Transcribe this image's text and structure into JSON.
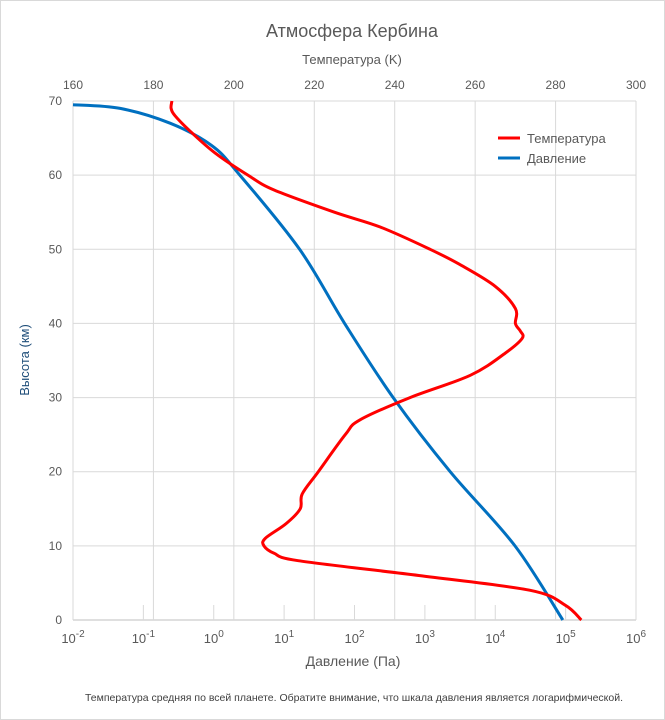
{
  "chart_data": {
    "type": "line",
    "title": "Атмосфера Кербина",
    "top_axis": {
      "label": "Температура (K)",
      "range": [
        160,
        300
      ],
      "ticks": [
        160,
        180,
        200,
        220,
        240,
        260,
        280,
        300
      ]
    },
    "left_axis": {
      "label": "Высота (км)",
      "range": [
        0,
        70
      ],
      "ticks": [
        0,
        10,
        20,
        30,
        40,
        50,
        60,
        70
      ]
    },
    "bottom_axis": {
      "label": "Давление (Па)",
      "scale": "log",
      "range_exp": [
        -2,
        6
      ],
      "tick_base": "10",
      "tick_exponents": [
        "-2",
        "-1",
        "0",
        "1",
        "2",
        "3",
        "4",
        "5",
        "6"
      ]
    },
    "grid": true,
    "legend_position": "top-right",
    "series": [
      {
        "name": "Температура",
        "axis": "top",
        "color": "#ff0000",
        "points": [
          [
            286.4,
            0
          ],
          [
            282.4,
            2
          ],
          [
            273.7,
            4
          ],
          [
            246,
            6
          ],
          [
            216,
            8
          ],
          [
            210,
            9
          ],
          [
            207.5,
            10
          ],
          [
            207.8,
            11
          ],
          [
            213,
            13
          ],
          [
            216.5,
            15
          ],
          [
            217,
            17
          ],
          [
            221,
            20
          ],
          [
            227.7,
            25
          ],
          [
            231.4,
            27
          ],
          [
            243.8,
            30
          ],
          [
            258.8,
            33
          ],
          [
            267.5,
            36
          ],
          [
            271.7,
            38
          ],
          [
            271.2,
            39
          ],
          [
            270,
            40
          ],
          [
            270,
            42
          ],
          [
            265,
            45
          ],
          [
            256,
            48
          ],
          [
            248.8,
            50
          ],
          [
            236.4,
            53
          ],
          [
            225,
            55
          ],
          [
            210,
            58
          ],
          [
            203.5,
            60
          ],
          [
            195.3,
            63
          ],
          [
            189,
            66
          ],
          [
            185.4,
            68
          ],
          [
            184.4,
            69
          ],
          [
            184.6,
            70
          ]
        ]
      },
      {
        "name": "Давление",
        "axis": "bottom",
        "color": "#0070c0",
        "points_log10": [
          [
            4.96,
            0
          ],
          [
            4.28,
            10
          ],
          [
            3.36,
            20
          ],
          [
            2.55,
            30
          ],
          [
            1.86,
            40
          ],
          [
            1.22,
            50
          ],
          [
            0.37,
            60
          ],
          [
            -0.03,
            64
          ],
          [
            -0.62,
            67
          ],
          [
            -1.33,
            69
          ],
          [
            -2,
            69.5
          ]
        ]
      }
    ],
    "footnote": "Температура средняя по всей планете. Обратите внимание, что шкала давления является логарифмической."
  }
}
